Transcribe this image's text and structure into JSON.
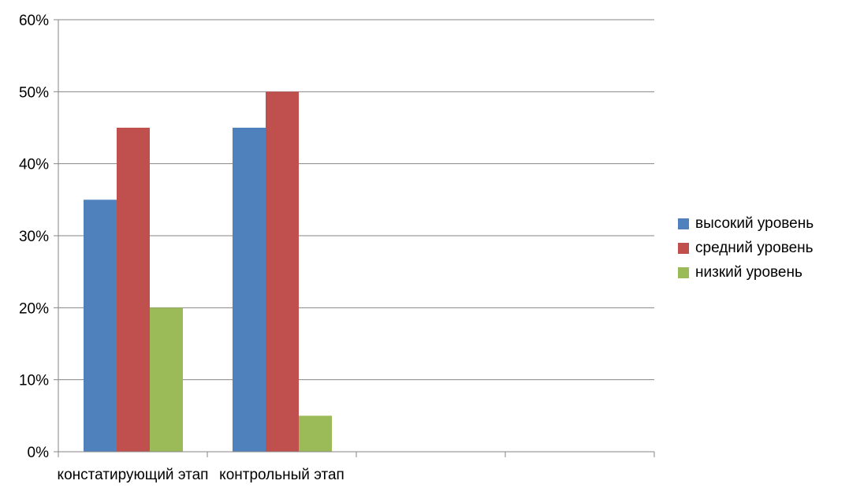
{
  "chart_data": {
    "type": "bar",
    "categories": [
      "констатирующий этап",
      "контрольный этап"
    ],
    "series": [
      {
        "name": "высокий уровень",
        "values": [
          35,
          45
        ],
        "color": "#4F81BD"
      },
      {
        "name": "средний уровень",
        "values": [
          45,
          50
        ],
        "color": "#C0504D"
      },
      {
        "name": "низкий уровень",
        "values": [
          20,
          5
        ],
        "color": "#9BBB59"
      }
    ],
    "ylim": [
      0,
      60
    ],
    "y_ticks": [
      "0%",
      "10%",
      "20%",
      "30%",
      "40%",
      "50%",
      "60%"
    ],
    "y_tick_values": [
      0,
      10,
      20,
      30,
      40,
      50,
      60
    ],
    "extra_empty_categories": 2,
    "grid": true,
    "legend_position": "right",
    "title": "",
    "xlabel": "",
    "ylabel": ""
  }
}
